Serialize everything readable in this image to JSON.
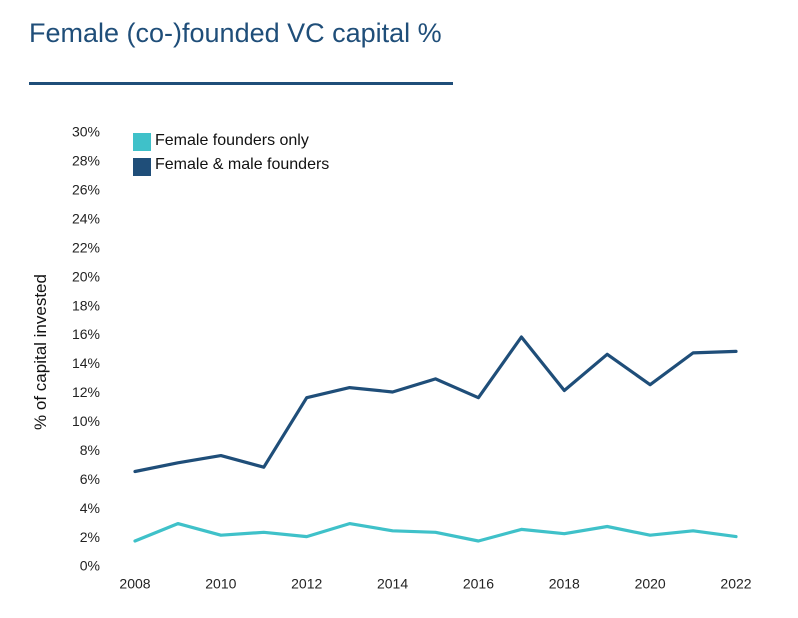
{
  "colors": {
    "title": "#1f4e79",
    "female_only": "#3fc1c9",
    "female_male": "#1f4e79"
  },
  "chart_data": {
    "type": "line",
    "title": "Female (co-)founded VC capital %",
    "xlabel": "",
    "ylabel": "% of capital invested",
    "x": [
      2008,
      2009,
      2010,
      2011,
      2012,
      2013,
      2014,
      2015,
      2016,
      2017,
      2018,
      2019,
      2020,
      2021,
      2022
    ],
    "xticks": [
      "2008",
      "2010",
      "2012",
      "2014",
      "2016",
      "2018",
      "2020",
      "2022"
    ],
    "xlim": [
      2008,
      2022
    ],
    "yticks": [
      "0%",
      "2%",
      "4%",
      "6%",
      "8%",
      "10%",
      "12%",
      "14%",
      "16%",
      "18%",
      "20%",
      "22%",
      "24%",
      "26%",
      "28%",
      "30%"
    ],
    "ylim": [
      0,
      30
    ],
    "grid": false,
    "legend_position": "top-left",
    "series": [
      {
        "name": "Female founders only",
        "color": "#3fc1c9",
        "values": [
          1.8,
          3.0,
          2.2,
          2.4,
          2.1,
          3.0,
          2.5,
          2.4,
          1.8,
          2.6,
          2.3,
          2.8,
          2.2,
          2.5,
          2.1
        ]
      },
      {
        "name": "Female & male founders",
        "color": "#1f4e79",
        "values": [
          6.6,
          7.2,
          7.7,
          6.9,
          11.7,
          12.4,
          12.1,
          13.0,
          11.7,
          15.9,
          12.2,
          14.7,
          12.6,
          14.8,
          14.9
        ]
      }
    ]
  }
}
